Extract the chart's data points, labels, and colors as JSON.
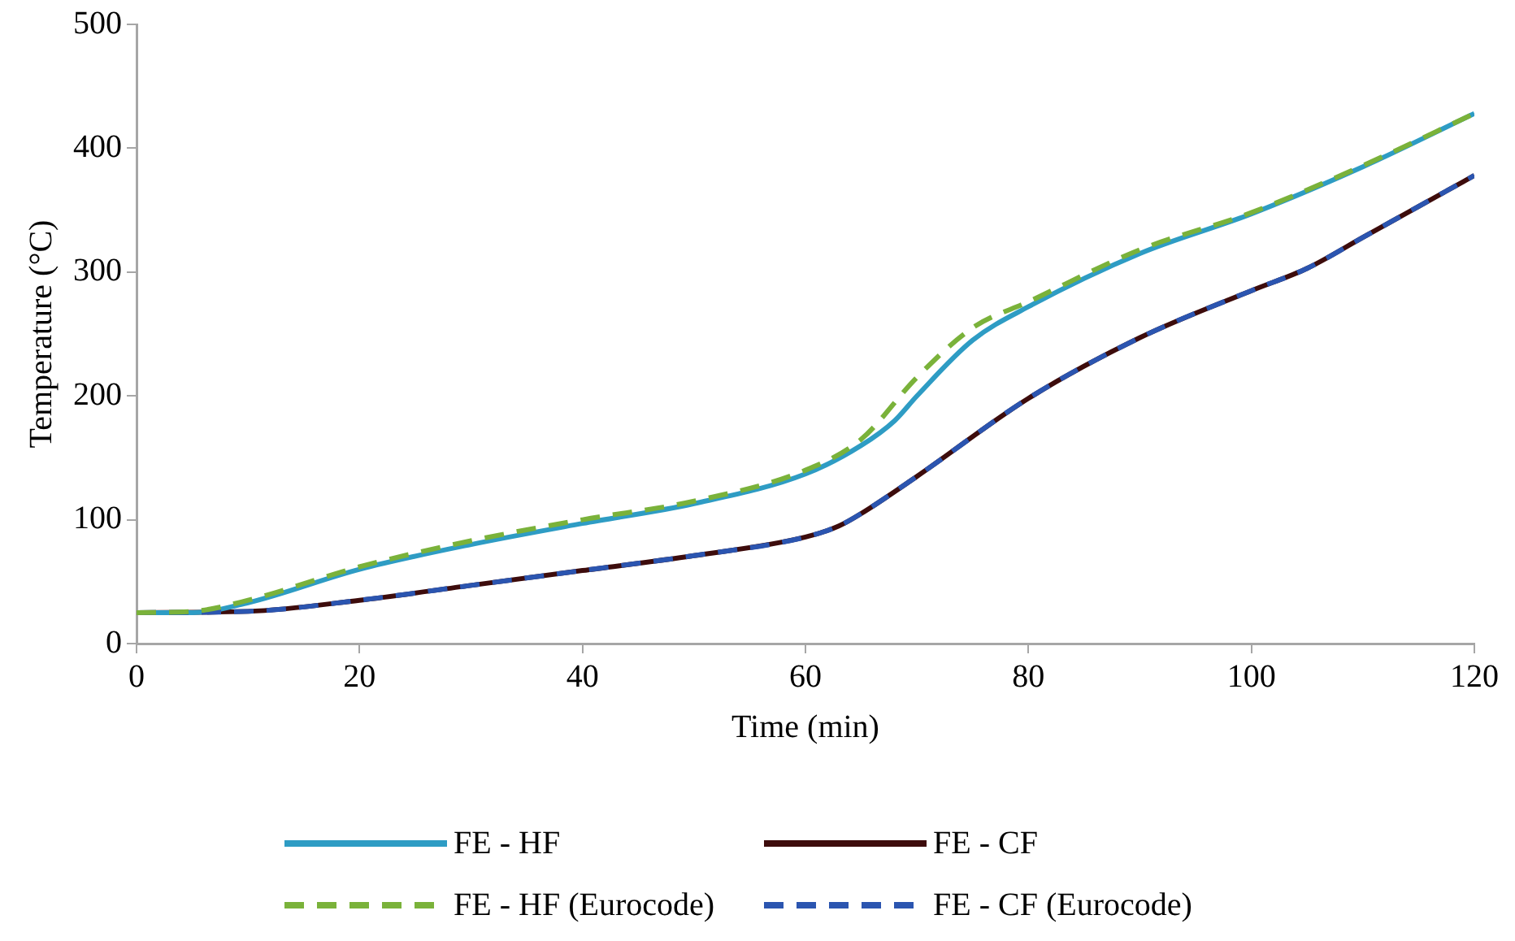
{
  "chart_data": {
    "type": "line",
    "xlabel": "Time (min)",
    "ylabel": "Temperature (°C)",
    "xlim": [
      0,
      120
    ],
    "xticks": [
      0,
      20,
      40,
      60,
      80,
      100,
      120
    ],
    "ylim": [
      0,
      500
    ],
    "yticks": [
      0,
      100,
      200,
      300,
      400,
      500
    ],
    "grid": false,
    "legend": "bottom",
    "marker": "none",
    "series": [
      {
        "name": "FE - HF",
        "color": "#2e9cc4",
        "line_style": "solid",
        "x": [
          0,
          5,
          10,
          20,
          30,
          40,
          50,
          60,
          65,
          68,
          70,
          75,
          80,
          90,
          100,
          110,
          120
        ],
        "values": [
          25,
          25,
          33,
          60,
          80,
          97,
          113,
          137,
          160,
          180,
          200,
          245,
          272,
          315,
          347,
          385,
          428
        ]
      },
      {
        "name": "FE - CF",
        "color": "#3d0c0c",
        "line_style": "solid",
        "x": [
          0,
          10,
          20,
          30,
          40,
          50,
          60,
          63,
          65,
          70,
          80,
          90,
          100,
          105,
          110,
          120
        ],
        "values": [
          25,
          26,
          35,
          47,
          59,
          71,
          86,
          95,
          105,
          135,
          198,
          247,
          285,
          303,
          328,
          378
        ]
      },
      {
        "name": "FE - HF (Eurocode)",
        "color": "#7ab23a",
        "line_style": "dashed",
        "x": [
          0,
          5,
          10,
          20,
          30,
          40,
          50,
          60,
          65,
          70,
          75,
          80,
          90,
          100,
          110,
          120
        ],
        "values": [
          25,
          26,
          35,
          62,
          83,
          100,
          115,
          140,
          165,
          215,
          255,
          276,
          318,
          348,
          386,
          428
        ]
      },
      {
        "name": "FE - CF (Eurocode)",
        "color": "#2b55b0",
        "line_style": "dashed",
        "x": [
          0,
          10,
          20,
          30,
          40,
          50,
          60,
          63,
          65,
          70,
          80,
          90,
          100,
          105,
          110,
          120
        ],
        "values": [
          25,
          26,
          35,
          47,
          59,
          71,
          86,
          95,
          105,
          135,
          198,
          247,
          285,
          303,
          328,
          378
        ]
      }
    ]
  }
}
